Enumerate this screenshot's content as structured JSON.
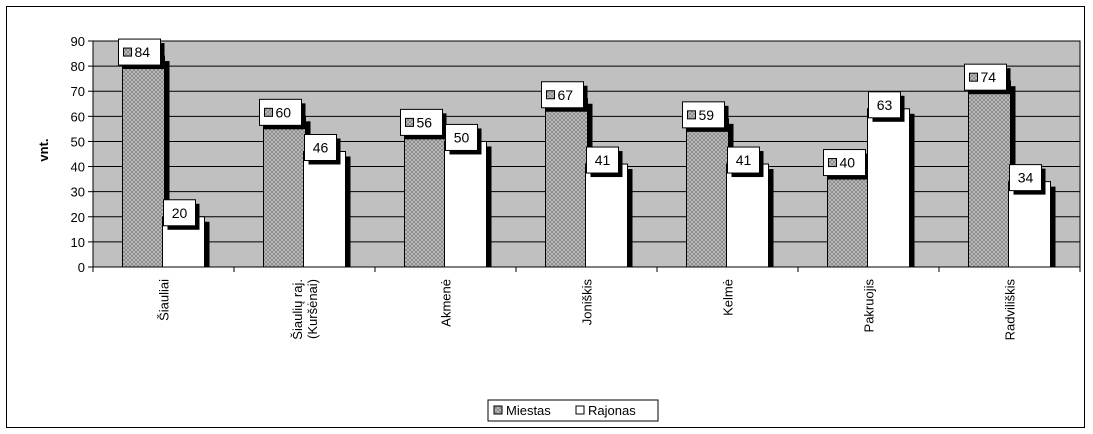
{
  "chart_data": {
    "type": "bar",
    "title": "",
    "xlabel": "",
    "ylabel": "vnt.",
    "ylim": [
      0,
      90
    ],
    "yticks": [
      0,
      10,
      20,
      30,
      40,
      50,
      60,
      70,
      80,
      90
    ],
    "grid": true,
    "legend_position": "bottom",
    "categories": [
      "Šiauliai",
      "Šiaulių raj. (Kuršėnai)",
      "Akmenė",
      "Joniškis",
      "Kelmė",
      "Pakruojis",
      "Radviliškis"
    ],
    "series": [
      {
        "name": "Miestas",
        "values": [
          84,
          60,
          56,
          67,
          59,
          40,
          74
        ],
        "pattern": "crosshatch",
        "color": "#b8b8b8"
      },
      {
        "name": "Rajonas",
        "values": [
          20,
          46,
          50,
          41,
          41,
          63,
          34
        ],
        "pattern": "solid",
        "color": "#ffffff"
      }
    ],
    "plot_background": "#c0c0c0"
  }
}
